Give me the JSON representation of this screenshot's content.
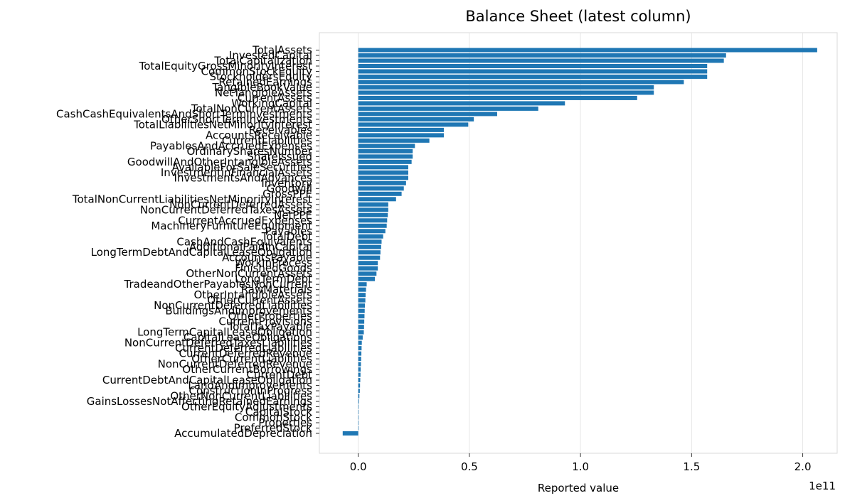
{
  "chart_data": {
    "type": "bar",
    "orientation": "horizontal",
    "title": "Balance Sheet (latest column)",
    "xlabel": "Reported value",
    "ylabel": "",
    "x_offset_label": "1e11",
    "xlim": [
      -0.175,
      2.155
    ],
    "x_ticks": [
      0.0,
      0.5,
      1.0,
      1.5,
      2.0
    ],
    "x_tick_labels": [
      "0.0",
      "0.5",
      "1.0",
      "1.5",
      "2.0"
    ],
    "grid": "vertical",
    "bar_color": "#1f77b4",
    "categories": [
      "TotalAssets",
      "InvestedCapital",
      "TotalCapitalization",
      "TotalEquityGrossMinorityInterest",
      "CommonStockEquity",
      "StockholdersEquity",
      "RetainedEarnings",
      "TangibleBookValue",
      "NetTangibleAssets",
      "CurrentAssets",
      "WorkingCapital",
      "TotalNonCurrentAssets",
      "CashCashEquivalentsAndShortTermInvestments",
      "OtherShortTermInvestments",
      "TotalLiabilitiesNetMinorityInterest",
      "Receivables",
      "AccountsReceivable",
      "CurrentLiabilities",
      "PayablesAndAccruedExpenses",
      "OrdinarySharesNumber",
      "ShareIssued",
      "GoodwillAndOtherIntangibleAssets",
      "AvailableForSaleSecurities",
      "InvestmentinFinancialAssets",
      "InvestmentsAndAdvances",
      "Inventory",
      "Goodwill",
      "GrossPPE",
      "TotalNonCurrentLiabilitiesNetMinorityInterest",
      "NonCurrentDeferredAssets",
      "NonCurrentDeferredTaxesAssets",
      "NetPPE",
      "CurrentAccruedExpenses",
      "MachineryFurnitureEquipment",
      "Payables",
      "TotalDebt",
      "CashAndCashEquivalents",
      "AdditionalPaidInCapital",
      "LongTermDebtAndCapitalLeaseObligation",
      "AccountsPayable",
      "WorkInProcess",
      "FinishedGoods",
      "OtherNonCurrentAssets",
      "LongTermDebt",
      "TradeandOtherPayablesNonCurrent",
      "RawMaterials",
      "OtherIntangibleAssets",
      "OtherCurrentAssets",
      "NonCurrentDeferredLiabilities",
      "BuildingsAndImprovements",
      "OtherProperties",
      "CurrentProvisions",
      "TotalTaxPayable",
      "LongTermCapitalLeaseObligation",
      "CapitalLeaseObligations",
      "NonCurrentDeferredTaxesLiabilities",
      "CurrentDeferredLiabilities",
      "CurrentDeferredRevenue",
      "OtherCurrentLiabilities",
      "NonCurrentDeferredRevenue",
      "OtherCurrentBorrowings",
      "CurrentDebt",
      "CurrentDebtAndCapitalLeaseObligation",
      "LandAndImprovements",
      "ConstructionInProgress",
      "OtherNonCurrentLiabilities",
      "GainsLossesNotAffectingRetainedEarnings",
      "OtherEquityAdjustments",
      "CapitalStock",
      "CommonStock",
      "Properties",
      "PreferredStock",
      "AccumulatedDepreciation"
    ],
    "values": [
      2.065,
      1.655,
      1.645,
      1.57,
      1.57,
      1.57,
      1.465,
      1.33,
      1.33,
      1.255,
      0.93,
      0.81,
      0.625,
      0.52,
      0.495,
      0.385,
      0.385,
      0.32,
      0.255,
      0.245,
      0.245,
      0.24,
      0.225,
      0.225,
      0.225,
      0.215,
      0.205,
      0.195,
      0.17,
      0.135,
      0.135,
      0.133,
      0.13,
      0.128,
      0.122,
      0.112,
      0.105,
      0.103,
      0.1,
      0.098,
      0.088,
      0.088,
      0.082,
      0.075,
      0.038,
      0.035,
      0.033,
      0.032,
      0.03,
      0.029,
      0.028,
      0.027,
      0.026,
      0.025,
      0.02,
      0.016,
      0.015,
      0.014,
      0.013,
      0.012,
      0.011,
      0.01,
      0.009,
      0.008,
      0.007,
      0.005,
      0.003,
      0.002,
      0.001,
      0.001,
      0.0005,
      0.0003,
      -0.07
    ]
  }
}
